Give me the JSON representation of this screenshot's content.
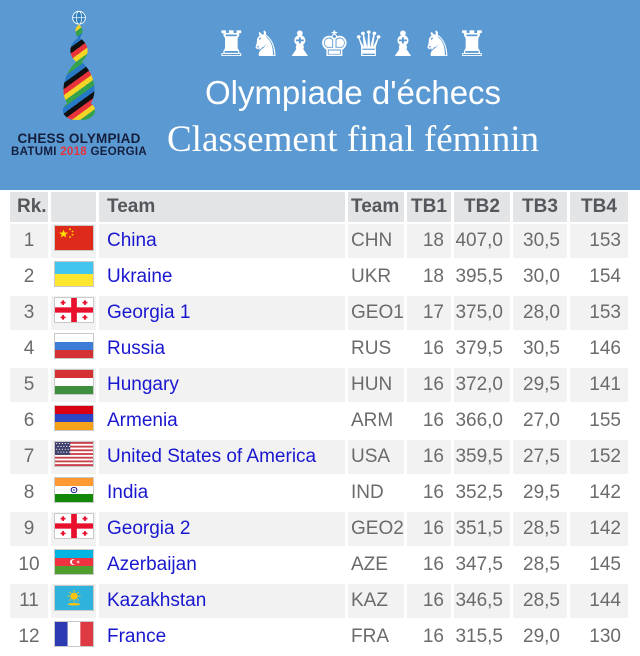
{
  "banner": {
    "pieces_glyphs": "♜♞♝♚♛♝♞♜",
    "title": "Olympiade d'échecs",
    "subtitle": "Classement final féminin",
    "logo": {
      "line1": "CHESS OLYMPIAD",
      "word1": "BATUMI",
      "year": "2018",
      "word2": "GEORGIA"
    }
  },
  "colors": {
    "banner_bg": "#5b99d2",
    "header_cell_bg": "#e3e4e6",
    "header_text": "#54585c",
    "row_odd_bg": "#f2f2f2",
    "row_even_bg": "#ffffff",
    "team_link": "#1a18cf",
    "cell_text": "#6b6b6b",
    "year_red": "#e8333a"
  },
  "table": {
    "headers": [
      "Rk.",
      "",
      "Team",
      "Team",
      "TB1",
      "TB2",
      "TB3",
      "TB4"
    ],
    "rows": [
      {
        "rank": "1",
        "flag": "china",
        "team": "China",
        "code": "CHN",
        "tb1": "18",
        "tb2": "407,0",
        "tb3": "30,5",
        "tb4": "153"
      },
      {
        "rank": "2",
        "flag": "ukraine",
        "team": "Ukraine",
        "code": "UKR",
        "tb1": "18",
        "tb2": "395,5",
        "tb3": "30,0",
        "tb4": "154"
      },
      {
        "rank": "3",
        "flag": "georgia",
        "team": "Georgia 1",
        "code": "GEO1",
        "tb1": "17",
        "tb2": "375,0",
        "tb3": "28,0",
        "tb4": "153"
      },
      {
        "rank": "4",
        "flag": "russia",
        "team": "Russia",
        "code": "RUS",
        "tb1": "16",
        "tb2": "379,5",
        "tb3": "30,5",
        "tb4": "146"
      },
      {
        "rank": "5",
        "flag": "hungary",
        "team": "Hungary",
        "code": "HUN",
        "tb1": "16",
        "tb2": "372,0",
        "tb3": "29,5",
        "tb4": "141"
      },
      {
        "rank": "6",
        "flag": "armenia",
        "team": "Armenia",
        "code": "ARM",
        "tb1": "16",
        "tb2": "366,0",
        "tb3": "27,0",
        "tb4": "155"
      },
      {
        "rank": "7",
        "flag": "usa",
        "team": "United States of America",
        "code": "USA",
        "tb1": "16",
        "tb2": "359,5",
        "tb3": "27,5",
        "tb4": "152"
      },
      {
        "rank": "8",
        "flag": "india",
        "team": "India",
        "code": "IND",
        "tb1": "16",
        "tb2": "352,5",
        "tb3": "29,5",
        "tb4": "142"
      },
      {
        "rank": "9",
        "flag": "georgia",
        "team": "Georgia 2",
        "code": "GEO2",
        "tb1": "16",
        "tb2": "351,5",
        "tb3": "28,5",
        "tb4": "142"
      },
      {
        "rank": "10",
        "flag": "azerbaijan",
        "team": "Azerbaijan",
        "code": "AZE",
        "tb1": "16",
        "tb2": "347,5",
        "tb3": "28,5",
        "tb4": "145"
      },
      {
        "rank": "11",
        "flag": "kazakhstan",
        "team": "Kazakhstan",
        "code": "KAZ",
        "tb1": "16",
        "tb2": "346,5",
        "tb3": "28,5",
        "tb4": "144"
      },
      {
        "rank": "12",
        "flag": "france",
        "team": "France",
        "code": "FRA",
        "tb1": "16",
        "tb2": "315,5",
        "tb3": "29,0",
        "tb4": "130"
      }
    ]
  }
}
